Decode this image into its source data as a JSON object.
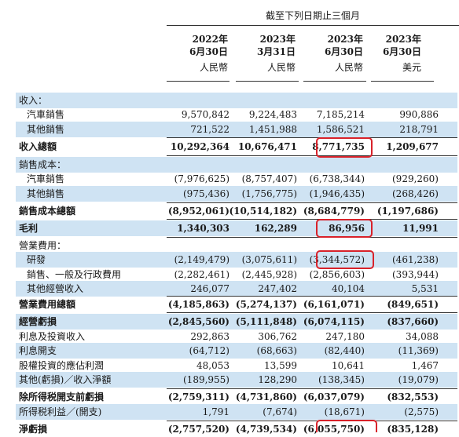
{
  "period_header": "截至下列日期止三個月",
  "columns": [
    {
      "year": "2022年",
      "date": "6月30日",
      "currency": "人民幣"
    },
    {
      "year": "2023年",
      "date": "3月31日",
      "currency": "人民幣"
    },
    {
      "year": "2023年",
      "date": "6月30日",
      "currency": "人民幣"
    },
    {
      "year": "2023年",
      "date": "6月30日",
      "currency": "美元"
    }
  ],
  "rows": [
    {
      "label": "收入：",
      "values": [
        "",
        "",
        "",
        ""
      ]
    },
    {
      "label": "汽車銷售",
      "values": [
        "9,570,842",
        "9,224,483",
        "7,185,214",
        "990,886"
      ]
    },
    {
      "label": "其他銷售",
      "values": [
        "721,522",
        "1,451,988",
        "1,586,521",
        "218,791"
      ]
    },
    {
      "label": "收入總額",
      "values": [
        "10,292,364",
        "10,676,471",
        "8,771,735",
        "1,209,677"
      ]
    },
    {
      "label": "銷售成本：",
      "values": [
        "",
        "",
        "",
        ""
      ]
    },
    {
      "label": "汽車銷售",
      "values": [
        "(7,976,625)",
        "(8,757,407)",
        "(6,738,344)",
        "(929,260)"
      ]
    },
    {
      "label": "其他銷售",
      "values": [
        "(975,436)",
        "(1,756,775)",
        "(1,946,435)",
        "(268,426)"
      ]
    },
    {
      "label": "銷售成本總額",
      "values": [
        "(8,952,061)",
        "(10,514,182)",
        "(8,684,779)",
        "(1,197,686)"
      ]
    },
    {
      "label": "毛利",
      "values": [
        "1,340,303",
        "162,289",
        "86,956",
        "11,991"
      ]
    },
    {
      "label": "營業費用：",
      "values": [
        "",
        "",
        "",
        ""
      ]
    },
    {
      "label": "研發",
      "values": [
        "(2,149,479)",
        "(3,075,611)",
        "(3,344,572)",
        "(461,238)"
      ]
    },
    {
      "label": "銷售、一般及行政費用",
      "values": [
        "(2,282,461)",
        "(2,445,928)",
        "(2,856,603)",
        "(393,944)"
      ]
    },
    {
      "label": "其他經營收入",
      "values": [
        "246,077",
        "247,402",
        "40,104",
        "5,531"
      ]
    },
    {
      "label": "營業費用總額",
      "values": [
        "(4,185,863)",
        "(5,274,137)",
        "(6,161,071)",
        "(849,651)"
      ]
    },
    {
      "label": "經營虧損",
      "values": [
        "(2,845,560)",
        "(5,111,848)",
        "(6,074,115)",
        "(837,660)"
      ]
    },
    {
      "label": "利息及投資收入",
      "values": [
        "292,863",
        "306,762",
        "247,180",
        "34,088"
      ]
    },
    {
      "label": "利息開支",
      "values": [
        "(64,712)",
        "(68,663)",
        "(82,440)",
        "(11,369)"
      ]
    },
    {
      "label": "股權投資的應佔利潤",
      "values": [
        "48,053",
        "13,599",
        "10,641",
        "1,467"
      ]
    },
    {
      "label": "其他(虧損)／收入淨額",
      "values": [
        "(189,955)",
        "128,290",
        "(138,345)",
        "(19,079)"
      ]
    },
    {
      "label": "除所得税開支前虧損",
      "values": [
        "(2,759,311)",
        "(4,731,860)",
        "(6,037,079)",
        "(832,553)"
      ]
    },
    {
      "label": "所得税利益／(開支)",
      "values": [
        "1,791",
        "(7,674)",
        "(18,671)",
        "(2,575)"
      ]
    },
    {
      "label": "淨虧損",
      "values": [
        "(2,757,520)",
        "(4,739,534)",
        "(6,055,750)",
        "(835,128)"
      ]
    }
  ],
  "colors": {
    "shade": "#cfe3f3",
    "highlight": "#d8222a"
  }
}
